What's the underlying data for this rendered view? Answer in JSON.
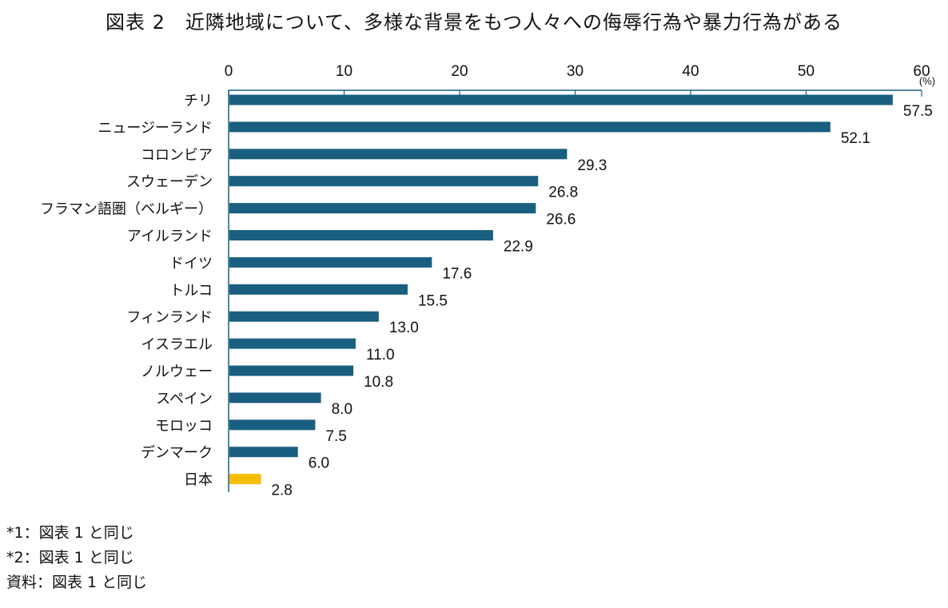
{
  "title": "図表 2　近隣地域について、多様な背景をもつ人々への侮辱行為や暴力行為がある",
  "notes": [
    "*1：図表 1 と同じ",
    "*2：図表 1 と同じ",
    "資料：図表 1 と同じ"
  ],
  "colors": {
    "bar": "#1a5f80",
    "highlight": "#f5be00",
    "axis": "#1a5f80"
  },
  "chart_data": {
    "type": "bar",
    "orientation": "horizontal",
    "title": "図表 2　近隣地域について、多様な背景をもつ人々への侮辱行為や暴力行為がある",
    "xlabel": "",
    "ylabel": "",
    "unit": "(%)",
    "xlim": [
      0,
      60
    ],
    "xticks": [
      0,
      10,
      20,
      30,
      40,
      50,
      60
    ],
    "axis_position": "top",
    "grid": false,
    "categories": [
      "チリ",
      "ニュージーランド",
      "コロンビア",
      "スウェーデン",
      "フラマン語圏（ベルギー）",
      "アイルランド",
      "ドイツ",
      "トルコ",
      "フィンランド",
      "イスラエル",
      "ノルウェー",
      "スペイン",
      "モロッコ",
      "デンマーク",
      "日本"
    ],
    "values": [
      57.5,
      52.1,
      29.3,
      26.8,
      26.6,
      22.9,
      17.6,
      15.5,
      13.0,
      11.0,
      10.8,
      8.0,
      7.5,
      6.0,
      2.8
    ],
    "value_labels": [
      "57.5",
      "52.1",
      "29.3",
      "26.8",
      "26.6",
      "22.9",
      "17.6",
      "15.5",
      "13.0",
      "11.0",
      "10.8",
      "8.0",
      "7.5",
      "6.0",
      "2.8"
    ],
    "highlight_category": "日本"
  }
}
